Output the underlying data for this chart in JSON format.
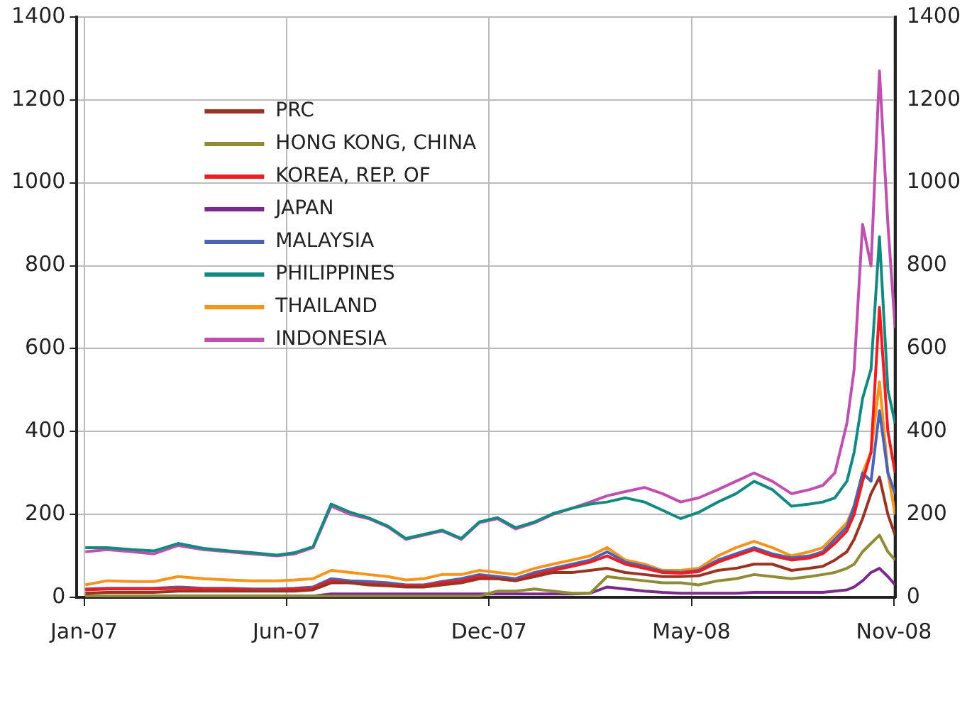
{
  "chart_data": {
    "type": "line",
    "x": [
      "2007-01-02",
      "2007-01-20",
      "2007-02-10",
      "2007-02-28",
      "2007-03-20",
      "2007-04-10",
      "2007-05-01",
      "2007-05-20",
      "2007-06-10",
      "2007-06-25",
      "2007-07-10",
      "2007-07-25",
      "2007-08-10",
      "2007-08-25",
      "2007-09-10",
      "2007-09-25",
      "2007-10-10",
      "2007-10-25",
      "2007-11-10",
      "2007-11-25",
      "2007-12-10",
      "2007-12-25",
      "2008-01-10",
      "2008-01-25",
      "2008-02-10",
      "2008-02-25",
      "2008-03-10",
      "2008-03-25",
      "2008-04-10",
      "2008-04-25",
      "2008-05-10",
      "2008-05-25",
      "2008-06-10",
      "2008-06-25",
      "2008-07-10",
      "2008-07-25",
      "2008-08-10",
      "2008-08-25",
      "2008-09-05",
      "2008-09-15",
      "2008-09-25",
      "2008-10-01",
      "2008-10-08",
      "2008-10-15",
      "2008-10-22",
      "2008-10-29",
      "2008-11-04"
    ],
    "series": [
      {
        "name": "PRC",
        "color": "#993322",
        "values": [
          10,
          12,
          12,
          12,
          15,
          15,
          15,
          15,
          15,
          15,
          18,
          35,
          35,
          30,
          28,
          25,
          25,
          30,
          35,
          45,
          45,
          40,
          50,
          60,
          60,
          65,
          70,
          60,
          55,
          50,
          50,
          52,
          65,
          70,
          80,
          80,
          65,
          70,
          75,
          90,
          110,
          140,
          190,
          250,
          290,
          200,
          150
        ]
      },
      {
        "name": "HONG KONG, CHINA",
        "color": "#8e8c36",
        "values": [
          3,
          3,
          3,
          3,
          3,
          3,
          3,
          3,
          3,
          3,
          3,
          3,
          3,
          3,
          3,
          3,
          3,
          3,
          3,
          3,
          15,
          15,
          20,
          15,
          10,
          10,
          50,
          45,
          40,
          35,
          35,
          30,
          40,
          45,
          55,
          50,
          45,
          50,
          55,
          60,
          70,
          80,
          110,
          130,
          150,
          110,
          90
        ]
      },
      {
        "name": "KOREA, REP. OF",
        "color": "#ee1d23",
        "values": [
          18,
          20,
          20,
          20,
          22,
          20,
          20,
          18,
          18,
          20,
          22,
          40,
          35,
          32,
          30,
          28,
          28,
          35,
          40,
          50,
          45,
          40,
          55,
          65,
          75,
          85,
          100,
          80,
          70,
          60,
          58,
          62,
          85,
          100,
          115,
          100,
          90,
          95,
          105,
          130,
          160,
          200,
          280,
          350,
          700,
          400,
          300
        ]
      },
      {
        "name": "JAPAN",
        "color": "#7b2a8c",
        "values": [
          3,
          3,
          3,
          3,
          3,
          3,
          3,
          3,
          3,
          3,
          3,
          8,
          8,
          8,
          8,
          8,
          8,
          8,
          8,
          8,
          8,
          8,
          8,
          8,
          8,
          10,
          25,
          20,
          15,
          12,
          10,
          10,
          10,
          10,
          12,
          12,
          12,
          12,
          12,
          15,
          18,
          25,
          40,
          60,
          70,
          50,
          30
        ]
      },
      {
        "name": "MALAYSIA",
        "color": "#4a62b8",
        "values": [
          20,
          22,
          22,
          22,
          25,
          22,
          22,
          20,
          20,
          22,
          25,
          45,
          40,
          38,
          35,
          30,
          30,
          38,
          45,
          55,
          50,
          45,
          60,
          70,
          80,
          90,
          110,
          85,
          75,
          62,
          60,
          65,
          90,
          105,
          120,
          105,
          95,
          100,
          110,
          140,
          170,
          220,
          300,
          280,
          450,
          300,
          250
        ]
      },
      {
        "name": "PHILIPPINES",
        "color": "#138a80",
        "values": [
          120,
          120,
          115,
          112,
          130,
          118,
          112,
          108,
          102,
          108,
          122,
          225,
          205,
          192,
          172,
          142,
          152,
          162,
          142,
          182,
          192,
          168,
          182,
          202,
          215,
          225,
          230,
          240,
          230,
          210,
          190,
          205,
          230,
          250,
          280,
          260,
          220,
          225,
          230,
          240,
          280,
          350,
          480,
          550,
          870,
          500,
          420
        ]
      },
      {
        "name": "THAILAND",
        "color": "#f7941d",
        "values": [
          30,
          40,
          38,
          38,
          50,
          45,
          42,
          40,
          40,
          42,
          45,
          65,
          60,
          55,
          50,
          42,
          45,
          55,
          55,
          65,
          60,
          55,
          70,
          80,
          90,
          100,
          120,
          90,
          80,
          65,
          65,
          70,
          100,
          120,
          135,
          120,
          100,
          110,
          120,
          150,
          180,
          220,
          300,
          350,
          520,
          300,
          200
        ]
      },
      {
        "name": "INDONESIA",
        "color": "#c050b0",
        "values": [
          110,
          115,
          110,
          105,
          125,
          115,
          110,
          105,
          100,
          105,
          120,
          220,
          200,
          190,
          170,
          140,
          150,
          160,
          140,
          180,
          190,
          165,
          180,
          200,
          215,
          230,
          245,
          255,
          265,
          250,
          230,
          240,
          260,
          280,
          300,
          280,
          250,
          260,
          270,
          300,
          420,
          550,
          900,
          800,
          1270,
          900,
          650
        ]
      }
    ],
    "xlim": [
      "2006-12-26",
      "2008-11-04"
    ],
    "xticks": [
      {
        "value": "2007-01-01",
        "label": "Jan-07"
      },
      {
        "value": "2007-06-18",
        "label": "Jun-07"
      },
      {
        "value": "2007-12-03",
        "label": "Dec-07"
      },
      {
        "value": "2008-05-19",
        "label": "May-08"
      },
      {
        "value": "2008-11-03",
        "label": "Nov-08"
      }
    ],
    "ylim": [
      0,
      1400
    ],
    "yticks": [
      0,
      200,
      400,
      600,
      800,
      1000,
      1200,
      1400
    ],
    "y2lim": [
      0,
      1400
    ],
    "y2ticks": [
      0,
      200,
      400,
      600,
      800,
      1000,
      1200,
      1400
    ],
    "grid": true,
    "legend": "top left",
    "marker": "none",
    "line_style": "solid"
  }
}
